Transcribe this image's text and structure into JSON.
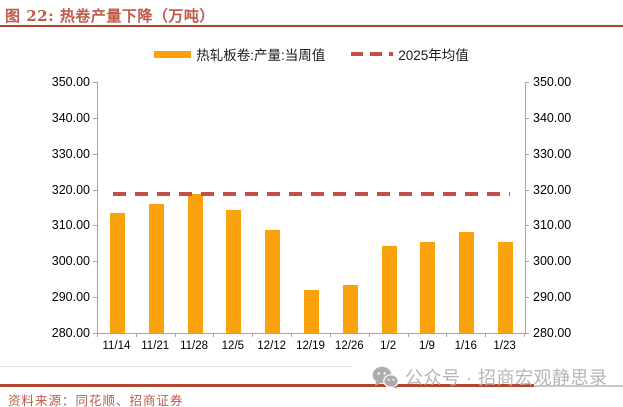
{
  "figure": {
    "title": "图 22: 热卷产量下降（万吨）",
    "source": "资料来源：同花顺、招商证券",
    "watermark": "公众号 · 招商宏观静思录"
  },
  "legend": {
    "items": [
      {
        "label": "热轧板卷:产量:当周值",
        "swatch": "bar",
        "color": "#FBA10B"
      },
      {
        "label": "2025年均值",
        "swatch": "dashed-line",
        "color": "#C1504C"
      }
    ]
  },
  "chart_data": {
    "type": "bar",
    "title": "热卷产量下降（万吨）",
    "categories": [
      "11/14",
      "11/21",
      "11/28",
      "12/5",
      "12/12",
      "12/19",
      "12/26",
      "1/2",
      "1/9",
      "1/16",
      "1/23"
    ],
    "series": [
      {
        "name": "热轧板卷:产量:当周值",
        "type": "bar",
        "color": "#FBA10B",
        "values": [
          313.5,
          316.0,
          318.8,
          314.2,
          308.6,
          291.9,
          293.4,
          304.4,
          305.5,
          308.2,
          305.3
        ]
      },
      {
        "name": "2025年均值",
        "type": "dashed-line",
        "color": "#C1504C",
        "value": 318.7
      }
    ],
    "ylim": [
      280,
      350
    ],
    "ytick_step": 10,
    "ytick_labels": [
      "350.00",
      "340.00",
      "330.00",
      "320.00",
      "310.00",
      "300.00",
      "290.00",
      "280.00"
    ],
    "y_axis_sides": "both",
    "grid": false,
    "legend_position": "top-center"
  },
  "colors": {
    "bar_orange": "#FBA10B",
    "avg_line_red": "#C1504C",
    "accent_rule": "#B2452E",
    "title_text": "#BF5948",
    "axis_gray": "#A6A6A6",
    "watermark_gray": "#B5B5B5"
  }
}
